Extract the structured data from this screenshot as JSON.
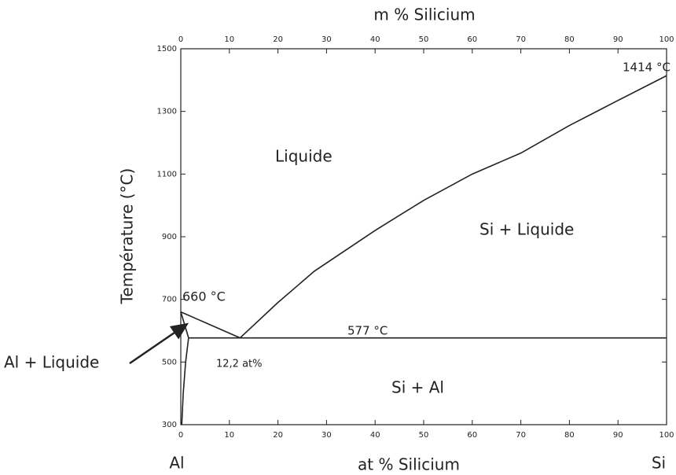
{
  "chart_data": {
    "type": "line",
    "xlabel": "at % Silicium",
    "x2label": "m % Silicium",
    "ylabel": "Température (°C)",
    "xlim": [
      0,
      100
    ],
    "xticks": [
      0,
      10,
      20,
      30,
      40,
      50,
      60,
      70,
      80,
      90,
      100
    ],
    "x2lim": [
      0,
      100
    ],
    "x2ticks": [
      0,
      10,
      20,
      30,
      40,
      50,
      60,
      70,
      80,
      90,
      100
    ],
    "ylim": [
      300,
      1500
    ],
    "yticks": [
      300,
      500,
      700,
      900,
      1100,
      1300,
      1500
    ],
    "color": "#222222",
    "series": [
      {
        "x": [
          0,
          12.2
        ],
        "values": [
          660,
          577
        ]
      },
      {
        "x": [
          12.2,
          20,
          27.5,
          40,
          50,
          60,
          70,
          80,
          90,
          100
        ],
        "values": [
          577,
          690,
          790,
          920,
          1016,
          1100,
          1167,
          1255,
          1335,
          1414
        ]
      },
      {
        "x": [
          1.6,
          100
        ],
        "values": [
          577,
          577
        ]
      },
      {
        "x": [
          0,
          1.6
        ],
        "values": [
          660,
          577
        ]
      },
      {
        "x": [
          1.6,
          1.0,
          0.5,
          0.2
        ],
        "values": [
          577,
          500,
          400,
          300
        ]
      }
    ],
    "annotations": [
      "1414 °C",
      "Liquide",
      "Si + Liquide",
      "660 °C",
      "577 °C",
      "12,2 at%",
      "Si + Al",
      "Al + Liquide",
      "Al",
      "Si"
    ]
  }
}
